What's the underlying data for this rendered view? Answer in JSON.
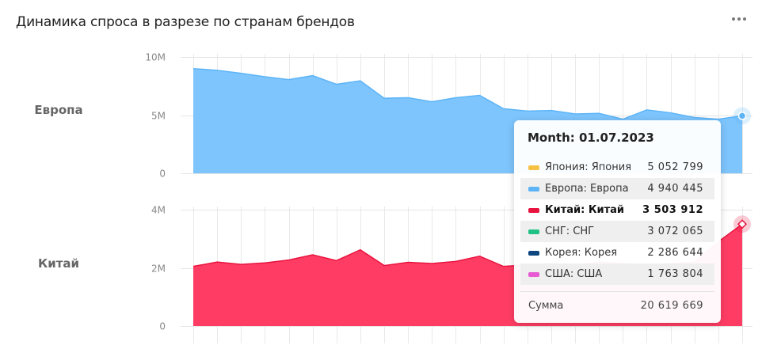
{
  "title": "Динамика спроса в разрезе по странам брендов",
  "chart_data": [
    {
      "type": "area",
      "panel_label": "Европа",
      "color": "#7ec5fd",
      "line_color": "#5cb4f7",
      "ylim": [
        0,
        10000000
      ],
      "yticks": [
        {
          "v": 0,
          "label": "0"
        },
        {
          "v": 5000000,
          "label": "5M"
        },
        {
          "v": 10000000,
          "label": "10M"
        }
      ],
      "values": [
        9000000,
        8850000,
        8600000,
        8300000,
        8050000,
        8400000,
        7650000,
        7950000,
        6450000,
        6500000,
        6150000,
        6500000,
        6700000,
        5550000,
        5350000,
        5400000,
        5100000,
        5150000,
        4650000,
        5450000,
        5200000,
        4800000,
        4650000,
        4940445
      ]
    },
    {
      "type": "area",
      "panel_label": "Китай",
      "color": "#ff3d64",
      "line_color": "#e8143f",
      "ylim": [
        0,
        4000000
      ],
      "yticks": [
        {
          "v": 0,
          "label": "0"
        },
        {
          "v": 2000000,
          "label": "2M"
        },
        {
          "v": 4000000,
          "label": "4M"
        }
      ],
      "values": [
        2050000,
        2200000,
        2120000,
        2170000,
        2270000,
        2450000,
        2250000,
        2620000,
        2080000,
        2190000,
        2150000,
        2220000,
        2400000,
        2050000,
        2100000,
        2150000,
        2100000,
        2200000,
        2150000,
        2100000,
        2150000,
        2200000,
        2900000,
        3503912
      ]
    }
  ],
  "tooltip": {
    "header": "Month: 01.07.2023",
    "rows": [
      {
        "name": "Япония: Япония",
        "value": "5 052 799",
        "color": "#f6c244",
        "bold": false
      },
      {
        "name": "Европа: Европа",
        "value": "4 940 445",
        "color": "#5cb4f7",
        "bold": false
      },
      {
        "name": "Китай: Китай",
        "value": "3 503 912",
        "color": "#e8143f",
        "bold": true
      },
      {
        "name": "СНГ: СНГ",
        "value": "3 072 065",
        "color": "#1fc185",
        "bold": false
      },
      {
        "name": "Корея: Корея",
        "value": "2 286 644",
        "color": "#0e4780",
        "bold": false
      },
      {
        "name": "США: США",
        "value": "1 763 804",
        "color": "#e75bd3",
        "bold": false
      }
    ],
    "sum_label": "Сумма",
    "sum_value": "20 619 669"
  }
}
